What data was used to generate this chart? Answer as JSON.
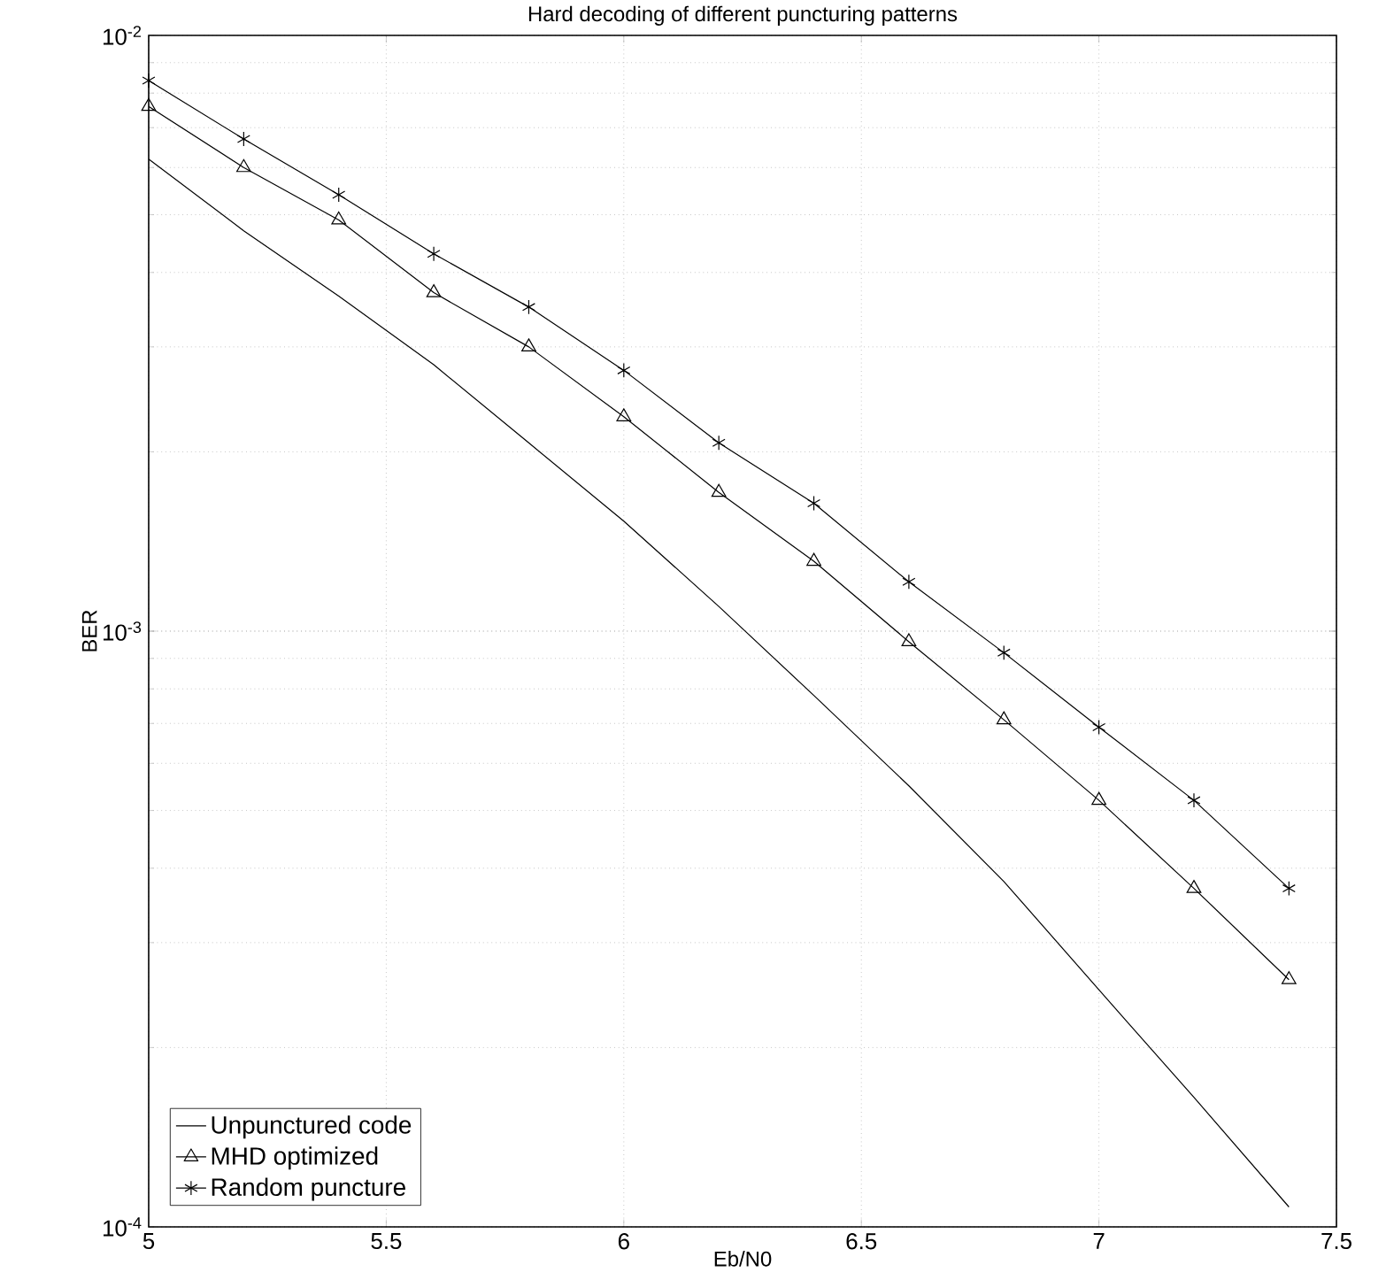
{
  "chart_data": {
    "type": "line",
    "title": "Hard decoding of different puncturing patterns",
    "xlabel": "Eb/N0",
    "ylabel": "BER",
    "x": [
      5,
      5.2,
      5.4,
      5.6,
      5.8,
      6,
      6.2,
      6.4,
      6.6,
      6.8,
      7,
      7.2,
      7.4
    ],
    "series": [
      {
        "name": "Unpunctured code",
        "color": "#000000",
        "marker": "none",
        "values": [
          0.0062,
          0.0047,
          0.00365,
          0.0028,
          0.00207,
          0.00153,
          0.0011,
          0.00078,
          0.00055,
          0.00038,
          0.00025,
          0.000165,
          0.000108
        ]
      },
      {
        "name": "MHD optimized",
        "color": "#000000",
        "marker": "triangle",
        "values": [
          0.0076,
          0.006,
          0.0049,
          0.0037,
          0.003,
          0.00229,
          0.00171,
          0.00131,
          0.00096,
          0.00071,
          0.00052,
          0.00037,
          0.00026
        ]
      },
      {
        "name": "Random puncture",
        "color": "#000000",
        "marker": "cross",
        "values": [
          0.0084,
          0.0067,
          0.0054,
          0.0043,
          0.0035,
          0.00274,
          0.00207,
          0.00164,
          0.00121,
          0.00092,
          0.00069,
          0.00052,
          0.00037
        ]
      }
    ],
    "log": "y",
    "xlim": [
      5,
      7.5
    ],
    "ylim": [
      0.0001,
      0.01
    ],
    "xticks": [
      5,
      5.5,
      6,
      6.5,
      7,
      7.5
    ],
    "yticks": [
      {
        "value": 0.0001,
        "label": "10$^{-4}$"
      },
      {
        "value": 0.001,
        "label": "10$^{-3}$"
      },
      {
        "value": 0.01,
        "label": "10$^{-2}$"
      }
    ],
    "grid": true,
    "legend": "bottom left",
    "line_style": "solid"
  }
}
